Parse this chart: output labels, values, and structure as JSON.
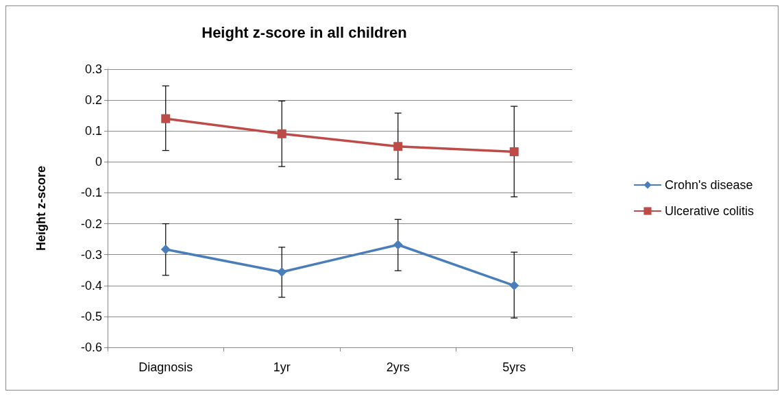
{
  "chart_data": {
    "type": "line",
    "title": "Height z-score in all children",
    "ylabel": "Height z-score",
    "categories": [
      "Diagnosis",
      "1yr",
      "2yrs",
      "5yrs"
    ],
    "series": [
      {
        "name": "Crohn's disease",
        "color": "#4a7ebb",
        "marker": "diamond",
        "values": [
          -0.283,
          -0.356,
          -0.268,
          -0.4
        ],
        "errors": [
          [
            -0.367,
            -0.2
          ],
          [
            -0.438,
            -0.276
          ],
          [
            -0.352,
            -0.186
          ],
          [
            -0.505,
            -0.292
          ]
        ]
      },
      {
        "name": "Ulcerative colitis",
        "color": "#be4b48",
        "marker": "square",
        "values": [
          0.14,
          0.091,
          0.05,
          0.033
        ],
        "errors": [
          [
            0.037,
            0.246
          ],
          [
            -0.015,
            0.197
          ],
          [
            -0.056,
            0.158
          ],
          [
            -0.113,
            0.18
          ]
        ]
      }
    ],
    "ylim": [
      -0.6,
      0.3
    ],
    "yticks": [
      -0.6,
      -0.5,
      -0.4,
      -0.3,
      -0.2,
      -0.1,
      0,
      0.1,
      0.2,
      0.3
    ],
    "grid": "y",
    "legend": "right"
  }
}
